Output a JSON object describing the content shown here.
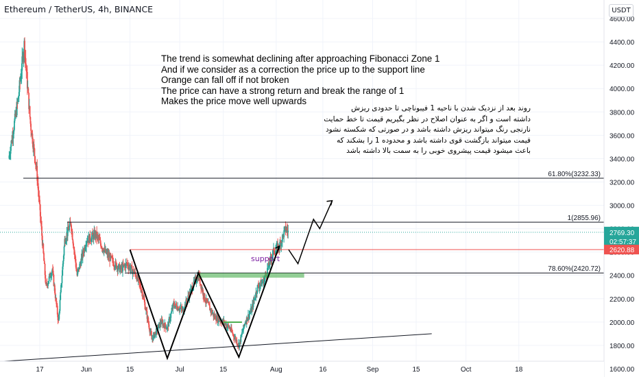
{
  "header": {
    "symbol_title": "Ethereum / TetherUS, 4h, BINANCE",
    "currency": "USDT"
  },
  "notes": {
    "english": [
      "The trend is somewhat declining after approaching Fibonacci Zone 1",
      "And if we consider as a correction the price up to the support line",
      "Orange can fall off if not broken",
      "The price can have a strong return and break the range of 1",
      "Makes the price move well upwards"
    ],
    "persian": [
      "روند بعد از نزدیک شدن با ناحیه 1 فیبوناچی تا حدودی ریزش",
      "داشته است و اگر به عنوان اصلاح در نظر بگیریم قیمت تا خط حمایت",
      "نارنجی رنگ میتواند ریزش داشته باشد و در صورتی که شکسته نشود",
      "قیمت میتواند بازگشت قوی داشته باشد و محدوده 1 را بشکند که",
      "باعث میشود قیمت پیشروی خوبی را به سمت بالا داشته باشد"
    ]
  },
  "chart_data": {
    "type": "candlestick",
    "y_axis": {
      "range": [
        1580,
        4640
      ],
      "ticks": [
        1600,
        1800,
        2000,
        2200,
        2400,
        2600,
        2800,
        3000,
        3200,
        3400,
        3600,
        3800,
        4000,
        4200,
        4400,
        4600
      ],
      "tick_labels": [
        "1600.00",
        "1800.00",
        "2000.00",
        "2200.00",
        "2400.00",
        "2600.00",
        "2800.00",
        "3000.00",
        "3200.00",
        "3400.00",
        "3600.00",
        "3800.00",
        "4000.00",
        "4200.00",
        "4400.00",
        "4600.00"
      ]
    },
    "x_axis": {
      "tick_labels": [
        {
          "label": "17",
          "date": "2021-05-17"
        },
        {
          "label": "Jun",
          "date": "2021-06-01"
        },
        {
          "label": "15",
          "date": "2021-06-15"
        },
        {
          "label": "Jul",
          "date": "2021-07-01"
        },
        {
          "label": "15",
          "date": "2021-07-15"
        },
        {
          "label": "Aug",
          "date": "2021-08-01"
        },
        {
          "label": "16",
          "date": "2021-08-16"
        },
        {
          "label": "Sep",
          "date": "2021-09-01"
        },
        {
          "label": "15",
          "date": "2021-09-15"
        },
        {
          "label": "Oct",
          "date": "2021-10-01"
        },
        {
          "label": "18",
          "date": "2021-10-18"
        }
      ]
    },
    "price_path": [
      [
        "2021-05-07",
        3400
      ],
      [
        "2021-05-10",
        3900
      ],
      [
        "2021-05-12",
        4380
      ],
      [
        "2021-05-14",
        3700
      ],
      [
        "2021-05-16",
        3300
      ],
      [
        "2021-05-19",
        2300
      ],
      [
        "2021-05-21",
        2450
      ],
      [
        "2021-05-23",
        2000
      ],
      [
        "2021-05-25",
        2700
      ],
      [
        "2021-05-27",
        2850
      ],
      [
        "2021-05-29",
        2400
      ],
      [
        "2021-06-01",
        2700
      ],
      [
        "2021-06-04",
        2750
      ],
      [
        "2021-06-07",
        2600
      ],
      [
        "2021-06-10",
        2500
      ],
      [
        "2021-06-12",
        2450
      ],
      [
        "2021-06-14",
        2500
      ],
      [
        "2021-06-17",
        2400
      ],
      [
        "2021-06-19",
        2250
      ],
      [
        "2021-06-22",
        1850
      ],
      [
        "2021-06-25",
        2000
      ],
      [
        "2021-06-27",
        1950
      ],
      [
        "2021-06-29",
        2150
      ],
      [
        "2021-07-02",
        2100
      ],
      [
        "2021-07-05",
        2300
      ],
      [
        "2021-07-07",
        2400
      ],
      [
        "2021-07-09",
        2200
      ],
      [
        "2021-07-12",
        2050
      ],
      [
        "2021-07-15",
        2000
      ],
      [
        "2021-07-17",
        1950
      ],
      [
        "2021-07-20",
        1800
      ],
      [
        "2021-07-22",
        2000
      ],
      [
        "2021-07-24",
        2100
      ],
      [
        "2021-07-26",
        2300
      ],
      [
        "2021-07-28",
        2350
      ],
      [
        "2021-07-31",
        2600
      ],
      [
        "2021-08-02",
        2650
      ],
      [
        "2021-08-04",
        2800
      ],
      [
        "2021-08-05",
        2769.3
      ]
    ],
    "ohlc_note": "Candles are approximate; the price path lists estimated closes along the move.",
    "levels": [
      {
        "label": "61.80%(3232.33)",
        "value": 3232.33,
        "color": "#131722"
      },
      {
        "label": "1(2855.96)",
        "value": 2855.96,
        "color": "#131722"
      },
      {
        "label": "78.60%(2420.72)",
        "value": 2420.72,
        "color": "#131722"
      }
    ],
    "red_line": {
      "value": 2620.88,
      "start": "2021-06-15"
    },
    "last_price": {
      "value": 2769.3,
      "label": "2769.30",
      "countdown": "02:57:37"
    },
    "red_label": {
      "value": 2620.88,
      "label": "2620.88"
    },
    "trendline": {
      "from": [
        "2021-05-07",
        1680
      ],
      "to": [
        "2021-09-20",
        1900
      ]
    },
    "support_zone": {
      "label": "support",
      "top": 2420,
      "bottom": 2380,
      "from": "2021-07-07",
      "to": "2021-08-10",
      "color": "#4caf50"
    },
    "support_zone_small": {
      "top": 2005,
      "bottom": 1995,
      "from": "2021-07-15",
      "to": "2021-07-21",
      "color": "#4caf50"
    },
    "w_pattern": [
      [
        "2021-06-15",
        2620
      ],
      [
        "2021-06-27",
        1690
      ],
      [
        "2021-07-07",
        2420
      ],
      [
        "2021-07-20",
        1700
      ],
      [
        "2021-08-02",
        2650
      ]
    ],
    "projection": [
      [
        "2021-08-05",
        2620
      ],
      [
        "2021-08-08",
        2500
      ],
      [
        "2021-08-13",
        2880
      ],
      [
        "2021-08-15",
        2800
      ],
      [
        "2021-08-19",
        3040
      ]
    ],
    "colors": {
      "up": "#26a69a",
      "down": "#ef5350",
      "red_line": "#ef5350",
      "last_price_bg": "#26a69a",
      "red_label_bg": "#ef5350",
      "support_text": "#7b1fa2"
    }
  }
}
